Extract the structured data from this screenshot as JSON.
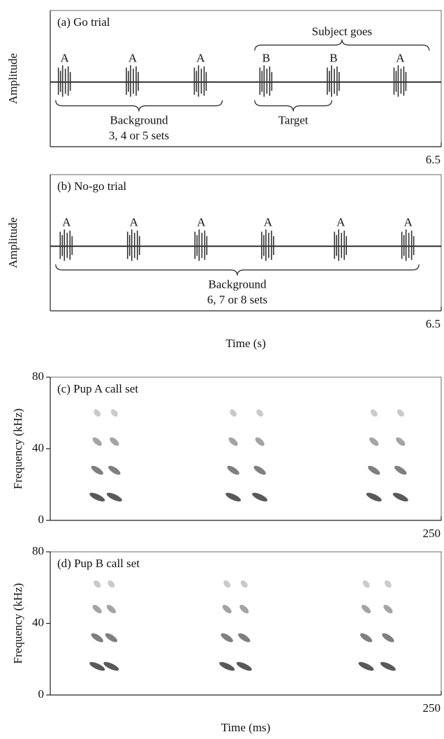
{
  "chart_data": [
    {
      "type": "waveform",
      "title": "(a) Go trial",
      "ylabel": "Amplitude",
      "xlim": [
        0,
        6.5
      ],
      "xticks": [
        6.5
      ],
      "x": [
        0.24,
        1.37,
        2.5,
        3.59,
        4.71,
        5.82
      ],
      "labels": [
        "A",
        "A",
        "A",
        "B",
        "B",
        "A"
      ],
      "annotations": [
        {
          "lines": [
            "Background",
            "3, 4 or 5 sets"
          ],
          "span": [
            0.09,
            2.86
          ],
          "side": "below"
        },
        {
          "lines": [
            "Target"
          ],
          "span": [
            3.4,
            4.68
          ],
          "side": "below"
        },
        {
          "lines": [
            "Subject goes"
          ],
          "span": [
            3.4,
            6.3
          ],
          "side": "above"
        }
      ]
    },
    {
      "type": "waveform",
      "title": "(b) No-go trial",
      "ylabel": "Amplitude",
      "xlabel": "Time (s)",
      "xlim": [
        0,
        6.5
      ],
      "xticks": [
        6.5
      ],
      "x": [
        0.27,
        1.39,
        2.51,
        3.62,
        4.83,
        5.95
      ],
      "labels": [
        "A",
        "A",
        "A",
        "A",
        "A",
        "A"
      ],
      "annotations": [
        {
          "lines": [
            "Background",
            "6, 7 or 8 sets"
          ],
          "span": [
            0.09,
            6.13
          ],
          "side": "below"
        }
      ]
    },
    {
      "type": "spectrogram",
      "title": "(c) Pup A call set",
      "ylabel": "Frequency (kHz)",
      "xlim": [
        0,
        250
      ],
      "xticks": [
        250
      ],
      "ylim": [
        0,
        80
      ],
      "yticks": [
        0,
        40,
        80
      ],
      "syllables": [
        30,
        41,
        117,
        134,
        207,
        224
      ],
      "harmonics": [
        13,
        28,
        44,
        60
      ]
    },
    {
      "type": "spectrogram",
      "title": "(d) Pup B call set",
      "ylabel": "Frequency (kHz)",
      "xlabel": "Time (ms)",
      "xlim": [
        0,
        250
      ],
      "xticks": [
        250
      ],
      "ylim": [
        0,
        80
      ],
      "yticks": [
        0,
        40,
        80
      ],
      "syllables": [
        30,
        39,
        113,
        124,
        202,
        216
      ],
      "harmonics": [
        16,
        32,
        48,
        62
      ]
    }
  ]
}
